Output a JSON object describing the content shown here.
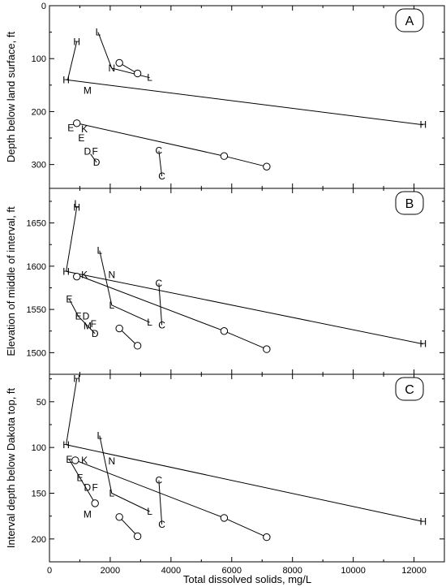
{
  "chart_data": {
    "type": "scatter",
    "shared_x": {
      "label": "Total dissolved solids, mg/L",
      "lim": [
        0,
        13000
      ],
      "ticks": [
        0,
        2000,
        4000,
        6000,
        8000,
        10000,
        12000
      ],
      "tick_labels": [
        "0",
        "2000",
        "4000",
        "6000",
        "8000",
        "10000",
        "12000"
      ]
    },
    "panels": [
      {
        "panel_label": "A",
        "ylabel": "Depth below land surface, ft",
        "ylim": [
          0,
          345
        ],
        "y_inverted": true,
        "ticks": [
          0,
          100,
          200,
          300
        ],
        "tick_labels": [
          "0",
          "100",
          "200",
          "300"
        ],
        "lines": [
          {
            "points": [
              [
                550,
                140
              ],
              [
                12300,
                225
              ]
            ]
          },
          {
            "points": [
              [
                600,
                140
              ],
              [
                900,
                68
              ]
            ]
          },
          {
            "points": [
              [
                1600,
                50
              ],
              [
                2050,
                118
              ],
              [
                3300,
                136
              ]
            ]
          },
          {
            "points": [
              [
                2300,
                108
              ],
              [
                2900,
                128
              ]
            ]
          },
          {
            "points": [
              [
                900,
                222
              ],
              [
                5750,
                284
              ],
              [
                7150,
                304
              ]
            ]
          },
          {
            "points": [
              [
                3600,
                274
              ],
              [
                3700,
                322
              ]
            ]
          },
          {
            "points": [
              [
                1350,
                280
              ],
              [
                1550,
                296
              ]
            ]
          }
        ],
        "points": [
          {
            "symbol": "H",
            "x": 900,
            "y": 68
          },
          {
            "symbol": "H",
            "x": 550,
            "y": 140
          },
          {
            "symbol": "H",
            "x": 12300,
            "y": 225
          },
          {
            "symbol": "L",
            "x": 1600,
            "y": 50
          },
          {
            "symbol": "N",
            "x": 2050,
            "y": 118
          },
          {
            "symbol": "L",
            "x": 3300,
            "y": 136
          },
          {
            "symbol": "O",
            "x": 2300,
            "y": 108
          },
          {
            "symbol": "O",
            "x": 2900,
            "y": 128
          },
          {
            "symbol": "M",
            "x": 1250,
            "y": 160
          },
          {
            "symbol": "O",
            "x": 900,
            "y": 222
          },
          {
            "symbol": "E",
            "x": 700,
            "y": 231
          },
          {
            "symbol": "K",
            "x": 1150,
            "y": 233
          },
          {
            "symbol": "E",
            "x": 1050,
            "y": 250
          },
          {
            "symbol": "D",
            "x": 1250,
            "y": 275
          },
          {
            "symbol": "F",
            "x": 1500,
            "y": 275
          },
          {
            "symbol": "D",
            "x": 1550,
            "y": 296
          },
          {
            "symbol": "C",
            "x": 3600,
            "y": 274
          },
          {
            "symbol": "C",
            "x": 3700,
            "y": 322
          },
          {
            "symbol": "O",
            "x": 5750,
            "y": 284
          },
          {
            "symbol": "O",
            "x": 7150,
            "y": 304
          }
        ]
      },
      {
        "panel_label": "B",
        "ylabel": "Elevation of middle of interval, ft",
        "ylim": [
          1475,
          1690
        ],
        "y_inverted": false,
        "ticks": [
          1500,
          1550,
          1600,
          1650
        ],
        "tick_labels": [
          "1500",
          "1550",
          "1600",
          "1650"
        ],
        "lines": [
          {
            "points": [
              [
                550,
                1594
              ],
              [
                12300,
                1510
              ]
            ]
          },
          {
            "points": [
              [
                550,
                1594
              ],
              [
                900,
                1668
              ]
            ]
          },
          {
            "points": [
              [
                900,
                1590
              ],
              [
                5750,
                1525
              ],
              [
                7150,
                1504
              ]
            ]
          },
          {
            "points": [
              [
                1650,
                1618
              ],
              [
                2050,
                1555
              ],
              [
                3300,
                1535
              ]
            ]
          },
          {
            "points": [
              [
                3600,
                1580
              ],
              [
                3700,
                1532
              ]
            ]
          },
          {
            "points": [
              [
                2300,
                1528
              ],
              [
                2900,
                1508
              ]
            ]
          },
          {
            "points": [
              [
                650,
                1562
              ],
              [
                950,
                1542
              ],
              [
                1500,
                1522
              ]
            ]
          }
        ],
        "points": [
          {
            "symbol": "L",
            "x": 900,
            "y": 1672
          },
          {
            "symbol": "H",
            "x": 900,
            "y": 1668
          },
          {
            "symbol": "H",
            "x": 550,
            "y": 1594
          },
          {
            "symbol": "H",
            "x": 12300,
            "y": 1510
          },
          {
            "symbol": "L",
            "x": 1650,
            "y": 1618
          },
          {
            "symbol": "N",
            "x": 2050,
            "y": 1590
          },
          {
            "symbol": "L",
            "x": 2050,
            "y": 1555
          },
          {
            "symbol": "L",
            "x": 3300,
            "y": 1535
          },
          {
            "symbol": "O",
            "x": 900,
            "y": 1588
          },
          {
            "symbol": "K",
            "x": 1150,
            "y": 1590
          },
          {
            "symbol": "C",
            "x": 3600,
            "y": 1580
          },
          {
            "symbol": "C",
            "x": 3700,
            "y": 1532
          },
          {
            "symbol": "E",
            "x": 650,
            "y": 1562
          },
          {
            "symbol": "E",
            "x": 950,
            "y": 1542
          },
          {
            "symbol": "D",
            "x": 1200,
            "y": 1542
          },
          {
            "symbol": "M",
            "x": 1250,
            "y": 1531
          },
          {
            "symbol": "F",
            "x": 1450,
            "y": 1533
          },
          {
            "symbol": "D",
            "x": 1500,
            "y": 1522
          },
          {
            "symbol": "O",
            "x": 2300,
            "y": 1528
          },
          {
            "symbol": "O",
            "x": 2900,
            "y": 1508
          },
          {
            "symbol": "O",
            "x": 5750,
            "y": 1525
          },
          {
            "symbol": "O",
            "x": 7150,
            "y": 1504
          }
        ]
      },
      {
        "panel_label": "C",
        "ylabel": "Interval depth below Dakota top, ft",
        "ylim": [
          20,
          225
        ],
        "y_inverted": true,
        "ticks": [
          50,
          100,
          150,
          200
        ],
        "tick_labels": [
          "50",
          "100",
          "150",
          "200"
        ],
        "lines": [
          {
            "points": [
              [
                550,
                97
              ],
              [
                12300,
                181
              ]
            ]
          },
          {
            "points": [
              [
                550,
                97
              ],
              [
                900,
                25
              ]
            ]
          },
          {
            "points": [
              [
                850,
                114
              ],
              [
                5750,
                177
              ],
              [
                7150,
                198
              ]
            ]
          },
          {
            "points": [
              [
                1650,
                87
              ],
              [
                2050,
                150
              ],
              [
                3300,
                170
              ]
            ]
          },
          {
            "points": [
              [
                3600,
                136
              ],
              [
                3700,
                184
              ]
            ]
          },
          {
            "points": [
              [
                2300,
                176
              ],
              [
                2900,
                197
              ]
            ]
          },
          {
            "points": [
              [
                650,
                113
              ],
              [
                1000,
                133
              ],
              [
                1500,
                161
              ]
            ]
          }
        ],
        "points": [
          {
            "symbol": "H",
            "x": 900,
            "y": 25
          },
          {
            "symbol": "H",
            "x": 550,
            "y": 97
          },
          {
            "symbol": "H",
            "x": 12300,
            "y": 181
          },
          {
            "symbol": "L",
            "x": 1650,
            "y": 87
          },
          {
            "symbol": "N",
            "x": 2050,
            "y": 115
          },
          {
            "symbol": "L",
            "x": 2050,
            "y": 150
          },
          {
            "symbol": "L",
            "x": 3300,
            "y": 170
          },
          {
            "symbol": "E",
            "x": 650,
            "y": 113
          },
          {
            "symbol": "O",
            "x": 850,
            "y": 114
          },
          {
            "symbol": "K",
            "x": 1150,
            "y": 114
          },
          {
            "symbol": "E",
            "x": 1000,
            "y": 133
          },
          {
            "symbol": "D",
            "x": 1250,
            "y": 144
          },
          {
            "symbol": "F",
            "x": 1500,
            "y": 144
          },
          {
            "symbol": "O",
            "x": 1500,
            "y": 161
          },
          {
            "symbol": "M",
            "x": 1250,
            "y": 173
          },
          {
            "symbol": "C",
            "x": 3600,
            "y": 136
          },
          {
            "symbol": "C",
            "x": 3700,
            "y": 184
          },
          {
            "symbol": "O",
            "x": 2300,
            "y": 176
          },
          {
            "symbol": "O",
            "x": 2900,
            "y": 197
          },
          {
            "symbol": "O",
            "x": 5750,
            "y": 177
          },
          {
            "symbol": "O",
            "x": 7150,
            "y": 198
          }
        ]
      }
    ]
  }
}
